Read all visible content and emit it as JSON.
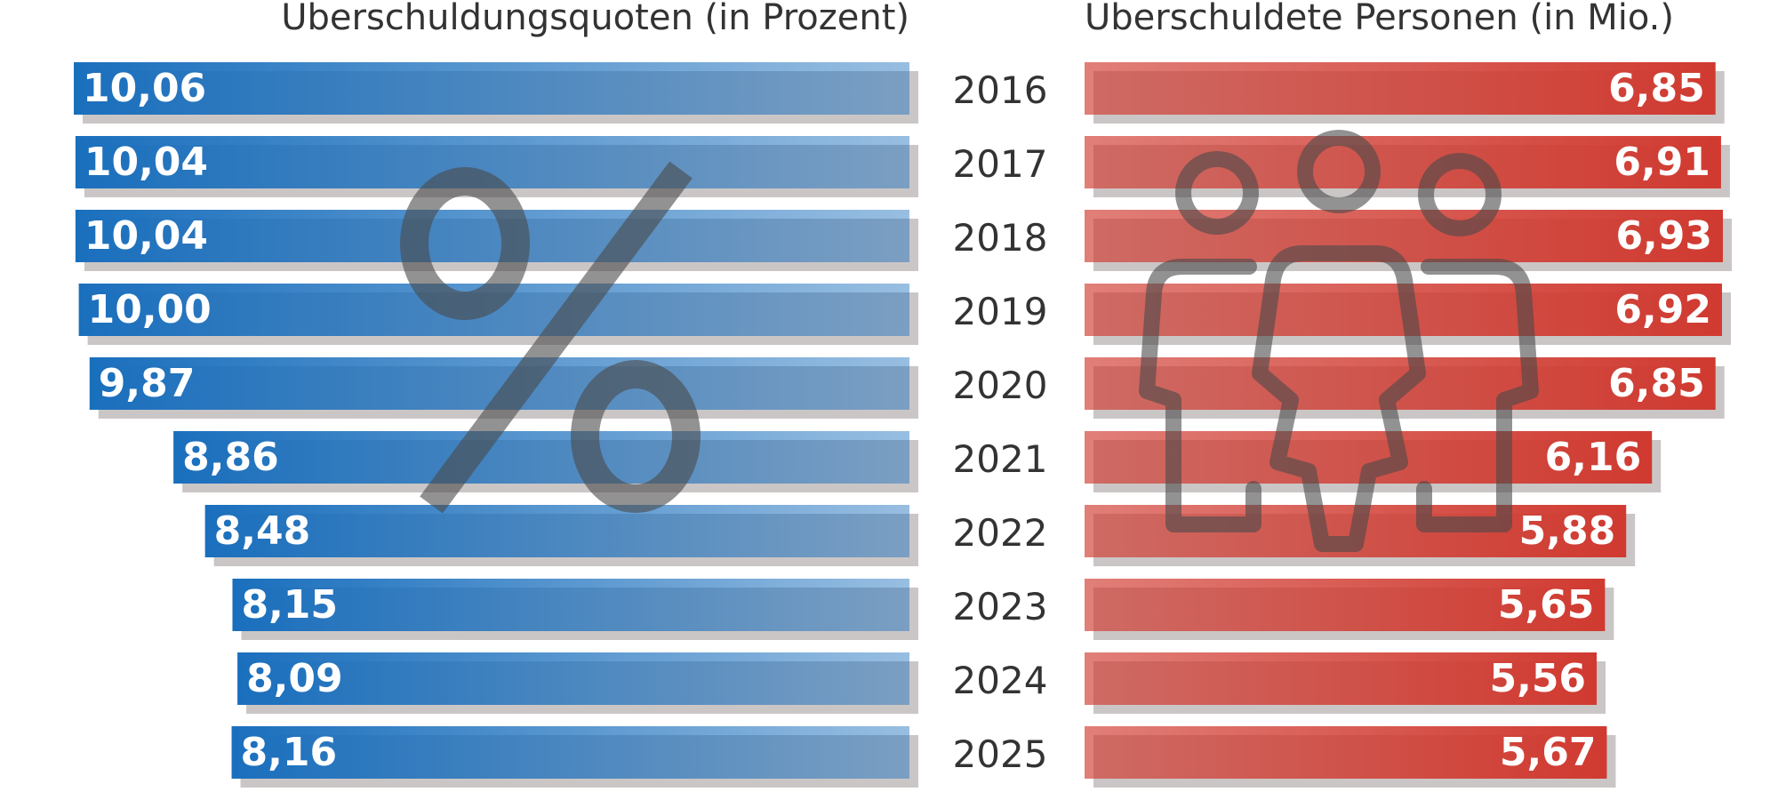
{
  "chart_data": {
    "type": "bar",
    "categories": [
      "2016",
      "2017",
      "2018",
      "2019",
      "2020",
      "2021",
      "2022",
      "2023",
      "2024",
      "2025"
    ],
    "series": [
      {
        "name": "Überschuldungsquoten (in Prozent)",
        "color": "#1a6fbd",
        "values": [
          10.06,
          10.04,
          10.04,
          10.0,
          9.87,
          8.86,
          8.48,
          8.15,
          8.09,
          8.16
        ],
        "value_labels": [
          "10,06",
          "10,04",
          "10,04",
          "10,00",
          "9,87",
          "8,86",
          "8,48",
          "8,15",
          "8,09",
          "8,16"
        ]
      },
      {
        "name": "Überschuldete Personen (in Mio.)",
        "color": "#d03a30",
        "values": [
          6.85,
          6.91,
          6.93,
          6.92,
          6.85,
          6.16,
          5.88,
          5.65,
          5.56,
          5.67
        ],
        "value_labels": [
          "6,85",
          "6,91",
          "6,93",
          "6,92",
          "6,85",
          "6,16",
          "5,88",
          "5,65",
          "5,56",
          "5,67"
        ]
      }
    ]
  }
}
